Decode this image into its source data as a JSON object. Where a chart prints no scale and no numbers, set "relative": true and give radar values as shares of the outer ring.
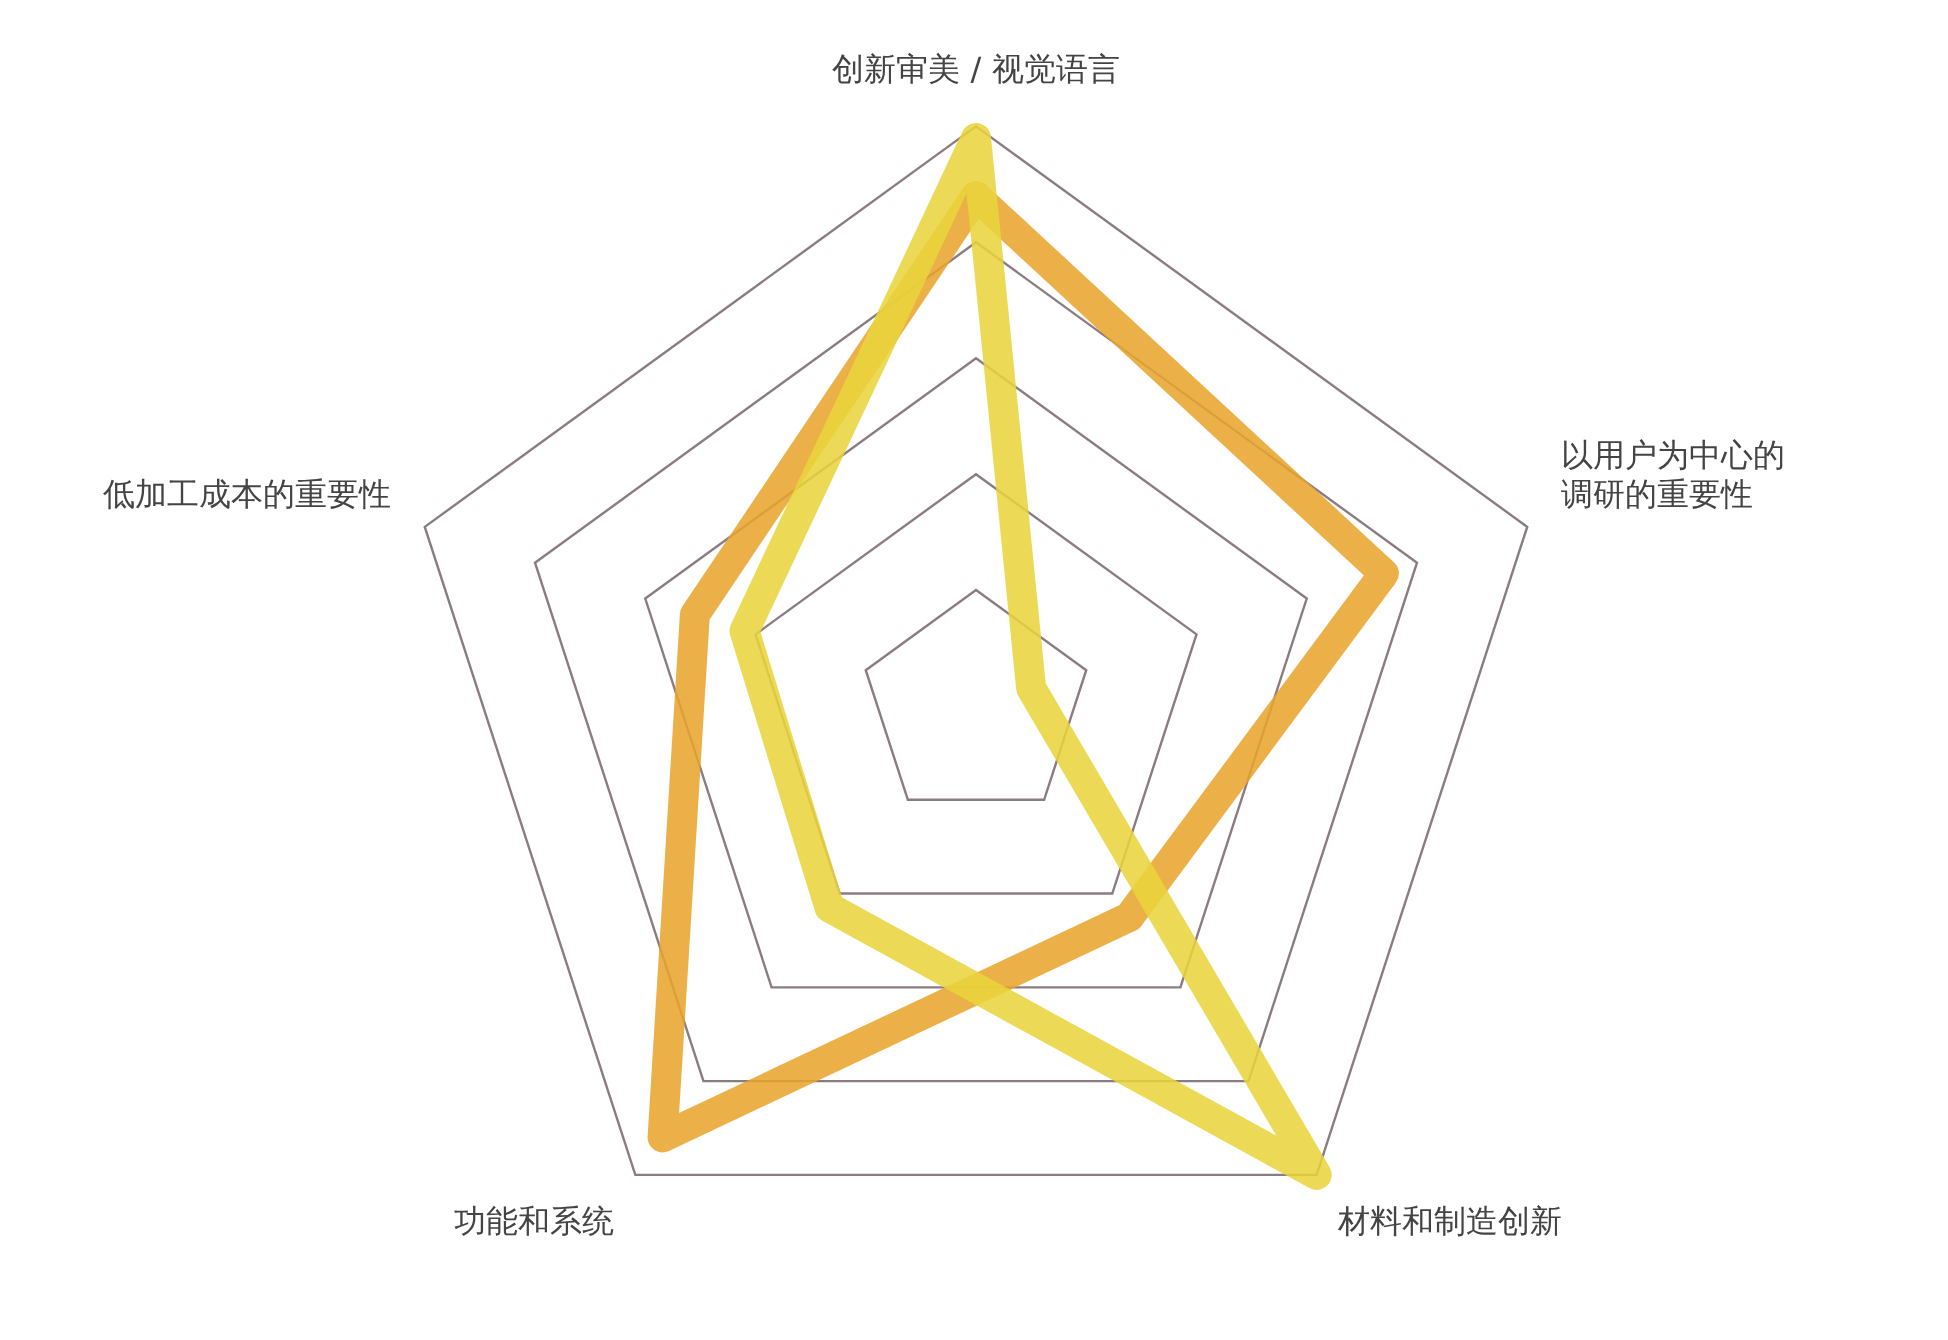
{
  "chart_data": {
    "type": "radar",
    "relative": true,
    "categories": [
      "创新审美 / 视觉语言",
      "以用户为中心的调研的重要性",
      "材料和制造创新",
      "功能和系统",
      "低加工成本的重要性"
    ],
    "series": [
      {
        "color": "#e9d43c",
        "values": [
          0.98,
          0.1,
          1.0,
          0.43,
          0.42
        ]
      },
      {
        "color": "#e8a52c",
        "values": [
          0.88,
          0.74,
          0.45,
          0.92,
          0.51
        ]
      }
    ],
    "grid": true,
    "legend": false,
    "marker": "none",
    "line_style": "solid"
  }
}
